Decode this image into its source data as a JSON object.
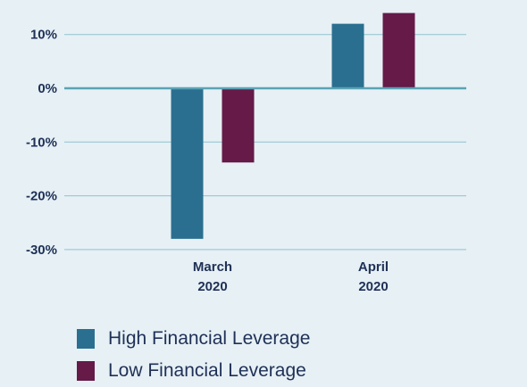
{
  "chart_data": {
    "type": "bar",
    "categories": [
      [
        "March",
        "2020"
      ],
      [
        "April",
        "2020"
      ]
    ],
    "series": [
      {
        "name": "High Financial Leverage",
        "color": "#2a6f8f",
        "values": [
          -28,
          12
        ]
      },
      {
        "name": "Low Financial Leverage",
        "color": "#651a48",
        "values": [
          -13.8,
          14
        ]
      }
    ],
    "yticks": [
      10,
      0,
      -10,
      -20,
      -30
    ],
    "ytick_labels": [
      "10%",
      "0%",
      "-10%",
      "-20%",
      "-30%"
    ],
    "ylim": [
      -30,
      14.5
    ],
    "grid": true,
    "legend_position": "bottom-left"
  }
}
